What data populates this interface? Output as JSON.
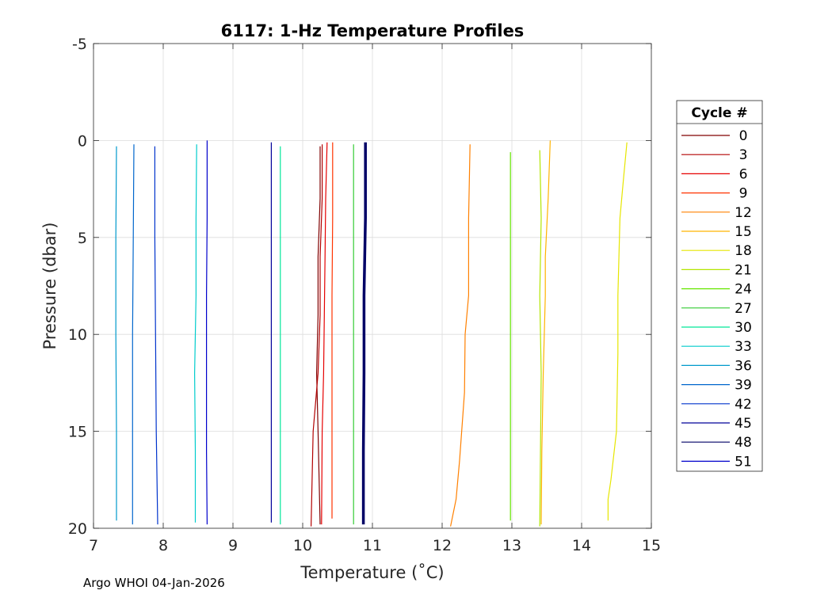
{
  "footer": "Argo WHOI 04-Jan-2026",
  "chart_data": {
    "type": "line",
    "title": "6117: 1-Hz Temperature Profiles",
    "xlabel": "Temperature (˚C)",
    "ylabel": "Pressure (dbar)",
    "xlim": [
      7,
      15
    ],
    "ylim": [
      -5,
      20
    ],
    "y_reversed": true,
    "grid": true,
    "xticks": [
      "7",
      "8",
      "9",
      "10",
      "11",
      "12",
      "13",
      "14",
      "15"
    ],
    "yticks": [
      "-5",
      "0",
      "5",
      "10",
      "15",
      "20"
    ],
    "legend": {
      "title": "Cycle #",
      "placement": "right"
    },
    "series": [
      {
        "name": "0",
        "color": "#800000",
        "x": [
          10.25,
          10.25,
          10.22,
          10.22,
          10.2,
          10.22,
          10.25
        ],
        "y": [
          0.3,
          3.0,
          6.0,
          9.0,
          12.0,
          15.0,
          19.8
        ]
      },
      {
        "name": "3",
        "color": "#b30000",
        "x": [
          10.28,
          10.28,
          10.25,
          10.25,
          10.22,
          10.15,
          10.12
        ],
        "y": [
          0.2,
          3.0,
          6.0,
          9.0,
          12.0,
          15.0,
          19.9
        ]
      },
      {
        "name": "6",
        "color": "#e60000",
        "x": [
          10.35,
          10.33,
          10.32,
          10.31,
          10.3,
          10.28,
          10.27
        ],
        "y": [
          0.1,
          3.0,
          6.0,
          9.0,
          12.0,
          15.0,
          19.8
        ]
      },
      {
        "name": "9",
        "color": "#ff3300",
        "x": [
          10.43,
          10.43,
          10.42,
          10.42,
          10.42,
          10.42
        ],
        "y": [
          0.1,
          4.0,
          8.0,
          12.0,
          16.0,
          19.5
        ]
      },
      {
        "name": "12",
        "color": "#ff8000",
        "x": [
          12.4,
          12.38,
          12.38,
          12.33,
          12.32,
          12.25,
          12.2,
          12.12
        ],
        "y": [
          0.2,
          4.0,
          8.0,
          10.0,
          13.0,
          16.5,
          18.5,
          19.9
        ]
      },
      {
        "name": "15",
        "color": "#ffb300",
        "x": [
          13.55,
          13.52,
          13.48,
          13.48,
          13.45,
          13.43,
          13.42
        ],
        "y": [
          0.0,
          3.0,
          6.0,
          8.0,
          12.0,
          16.0,
          19.8
        ]
      },
      {
        "name": "18",
        "color": "#e6e600",
        "x": [
          14.65,
          14.6,
          14.55,
          14.52,
          14.52,
          14.5,
          14.42,
          14.38,
          14.38
        ],
        "y": [
          0.1,
          2.0,
          4.0,
          8.0,
          11.0,
          15.0,
          17.5,
          18.5,
          19.6
        ]
      },
      {
        "name": "21",
        "color": "#b3e600",
        "x": [
          13.4,
          13.42,
          13.4,
          13.42,
          13.41,
          13.4
        ],
        "y": [
          0.5,
          4.0,
          8.0,
          12.0,
          16.0,
          19.9
        ]
      },
      {
        "name": "24",
        "color": "#66e600",
        "x": [
          12.98,
          12.98,
          12.98,
          12.98
        ],
        "y": [
          0.6,
          7.0,
          13.0,
          19.6
        ]
      },
      {
        "name": "27",
        "color": "#33cc33",
        "x": [
          10.73,
          10.73,
          10.73
        ],
        "y": [
          0.2,
          10.0,
          19.8
        ]
      },
      {
        "name": "30",
        "color": "#00e699",
        "x": [
          9.68,
          9.68,
          9.68
        ],
        "y": [
          0.3,
          10.0,
          19.8
        ]
      },
      {
        "name": "33",
        "color": "#00cccc",
        "x": [
          8.48,
          8.47,
          8.47,
          8.45,
          8.46,
          8.46
        ],
        "y": [
          0.2,
          4.0,
          8.0,
          12.0,
          16.0,
          19.7
        ]
      },
      {
        "name": "36",
        "color": "#0099cc",
        "x": [
          7.33,
          7.32,
          7.32,
          7.33,
          7.33
        ],
        "y": [
          0.3,
          5.0,
          10.0,
          15.0,
          19.6
        ]
      },
      {
        "name": "39",
        "color": "#0066cc",
        "x": [
          7.58,
          7.57,
          7.56,
          7.56,
          7.56
        ],
        "y": [
          0.2,
          5.0,
          10.0,
          15.0,
          19.8
        ]
      },
      {
        "name": "42",
        "color": "#0033cc",
        "x": [
          7.88,
          7.88,
          7.89,
          7.9,
          7.92
        ],
        "y": [
          0.3,
          5.0,
          10.0,
          15.0,
          19.8
        ]
      },
      {
        "name": "45",
        "color": "#000099",
        "x": [
          9.55,
          9.55,
          9.55,
          9.55
        ],
        "y": [
          0.1,
          7.0,
          13.0,
          19.7
        ]
      },
      {
        "name": "48",
        "color": "#000066",
        "x": [
          10.9,
          10.9,
          10.88,
          10.88,
          10.87,
          10.87
        ],
        "y": [
          0.1,
          4.0,
          8.0,
          12.0,
          16.0,
          19.8
        ]
      },
      {
        "name": "51",
        "color": "#0000cc",
        "x": [
          8.63,
          8.63,
          8.62,
          8.62,
          8.62,
          8.63
        ],
        "y": [
          0.0,
          4.0,
          8.0,
          12.0,
          16.0,
          19.8
        ]
      }
    ]
  }
}
